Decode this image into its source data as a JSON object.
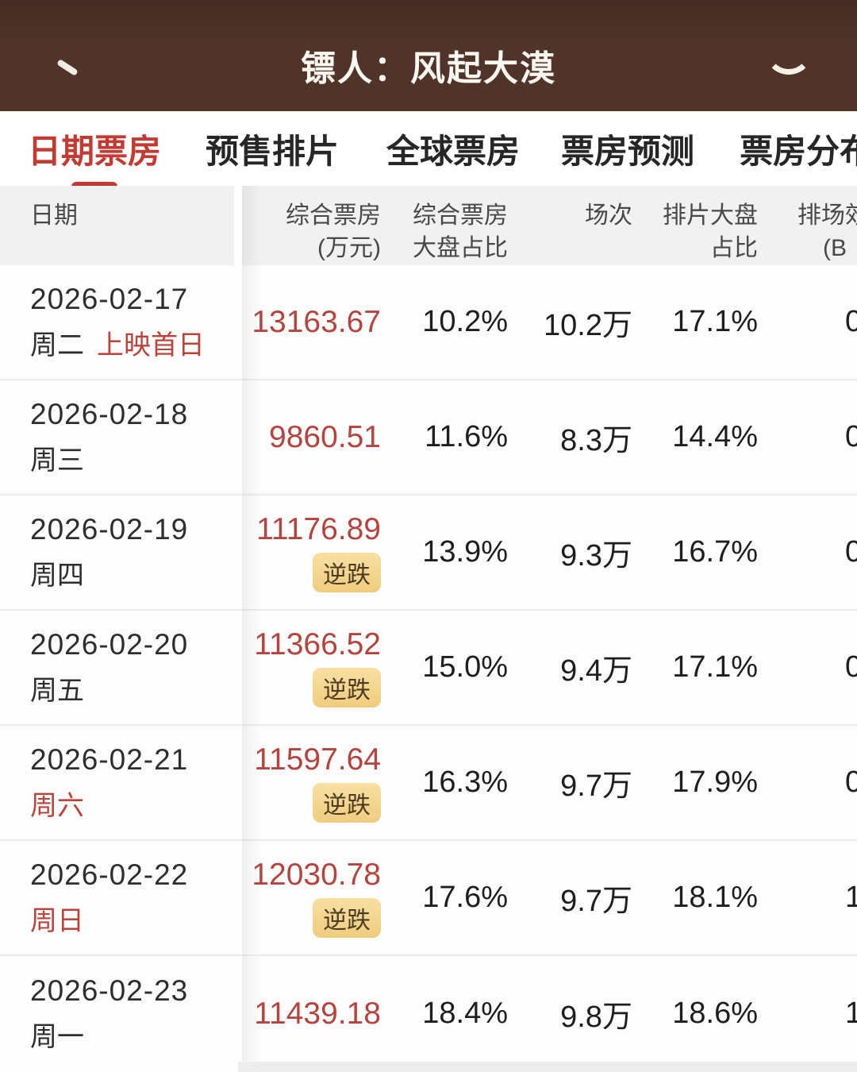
{
  "app": {
    "title": "镖人：风起大漠"
  },
  "tabs": [
    {
      "label": "日期票房",
      "active": true
    },
    {
      "label": "预售排片",
      "active": false
    },
    {
      "label": "全球票房",
      "active": false
    },
    {
      "label": "票房预测",
      "active": false
    },
    {
      "label": "票房分布",
      "active": false
    }
  ],
  "table": {
    "badge_label": "逆跌",
    "columns": {
      "date": "日期",
      "box_office_line1": "综合票房",
      "box_office_line2": "(万元)",
      "market_share_line1": "综合票房",
      "market_share_line2": "大盘占比",
      "sessions": "场次",
      "schedule_share_line1": "排片大盘",
      "schedule_share_line2": "占比",
      "efficiency_line1": "排场效",
      "efficiency_line2": "(B"
    },
    "rows": [
      {
        "date": "2026-02-17",
        "weekday": "周二",
        "date_tag": "上映首日",
        "box_office": "13163.67",
        "market_share": "10.2%",
        "sessions": "10.2万",
        "schedule_share": "17.1%",
        "efficiency_partial": "0"
      },
      {
        "date": "2026-02-18",
        "weekday": "周三",
        "box_office": "9860.51",
        "market_share": "11.6%",
        "sessions": "8.3万",
        "schedule_share": "14.4%",
        "efficiency_partial": "0"
      },
      {
        "date": "2026-02-19",
        "weekday": "周四",
        "box_office": "11176.89",
        "market_share": "13.9%",
        "sessions": "9.3万",
        "schedule_share": "16.7%",
        "efficiency_partial": "0"
      },
      {
        "date": "2026-02-20",
        "weekday": "周五",
        "box_office": "11366.52",
        "market_share": "15.0%",
        "sessions": "9.4万",
        "schedule_share": "17.1%",
        "efficiency_partial": "0"
      },
      {
        "date": "2026-02-21",
        "weekday": "周六",
        "box_office": "11597.64",
        "market_share": "16.3%",
        "sessions": "9.7万",
        "schedule_share": "17.9%",
        "efficiency_partial": "0"
      },
      {
        "date": "2026-02-22",
        "weekday": "周日",
        "box_office": "12030.78",
        "market_share": "17.6%",
        "sessions": "9.7万",
        "schedule_share": "18.1%",
        "efficiency_partial": "1"
      },
      {
        "date": "2026-02-23",
        "weekday": "周一",
        "box_office": "11439.18",
        "market_share": "18.4%",
        "sessions": "9.8万",
        "schedule_share": "18.6%",
        "efficiency_partial": "1"
      }
    ]
  },
  "colors": {
    "header_bg": "#50342a",
    "accent_red": "#c23a31",
    "number_red": "#b5443e",
    "badge_bg": "#f5d68c",
    "badge_text": "#4a3b22",
    "table_header_bg": "#f1f1f1"
  }
}
